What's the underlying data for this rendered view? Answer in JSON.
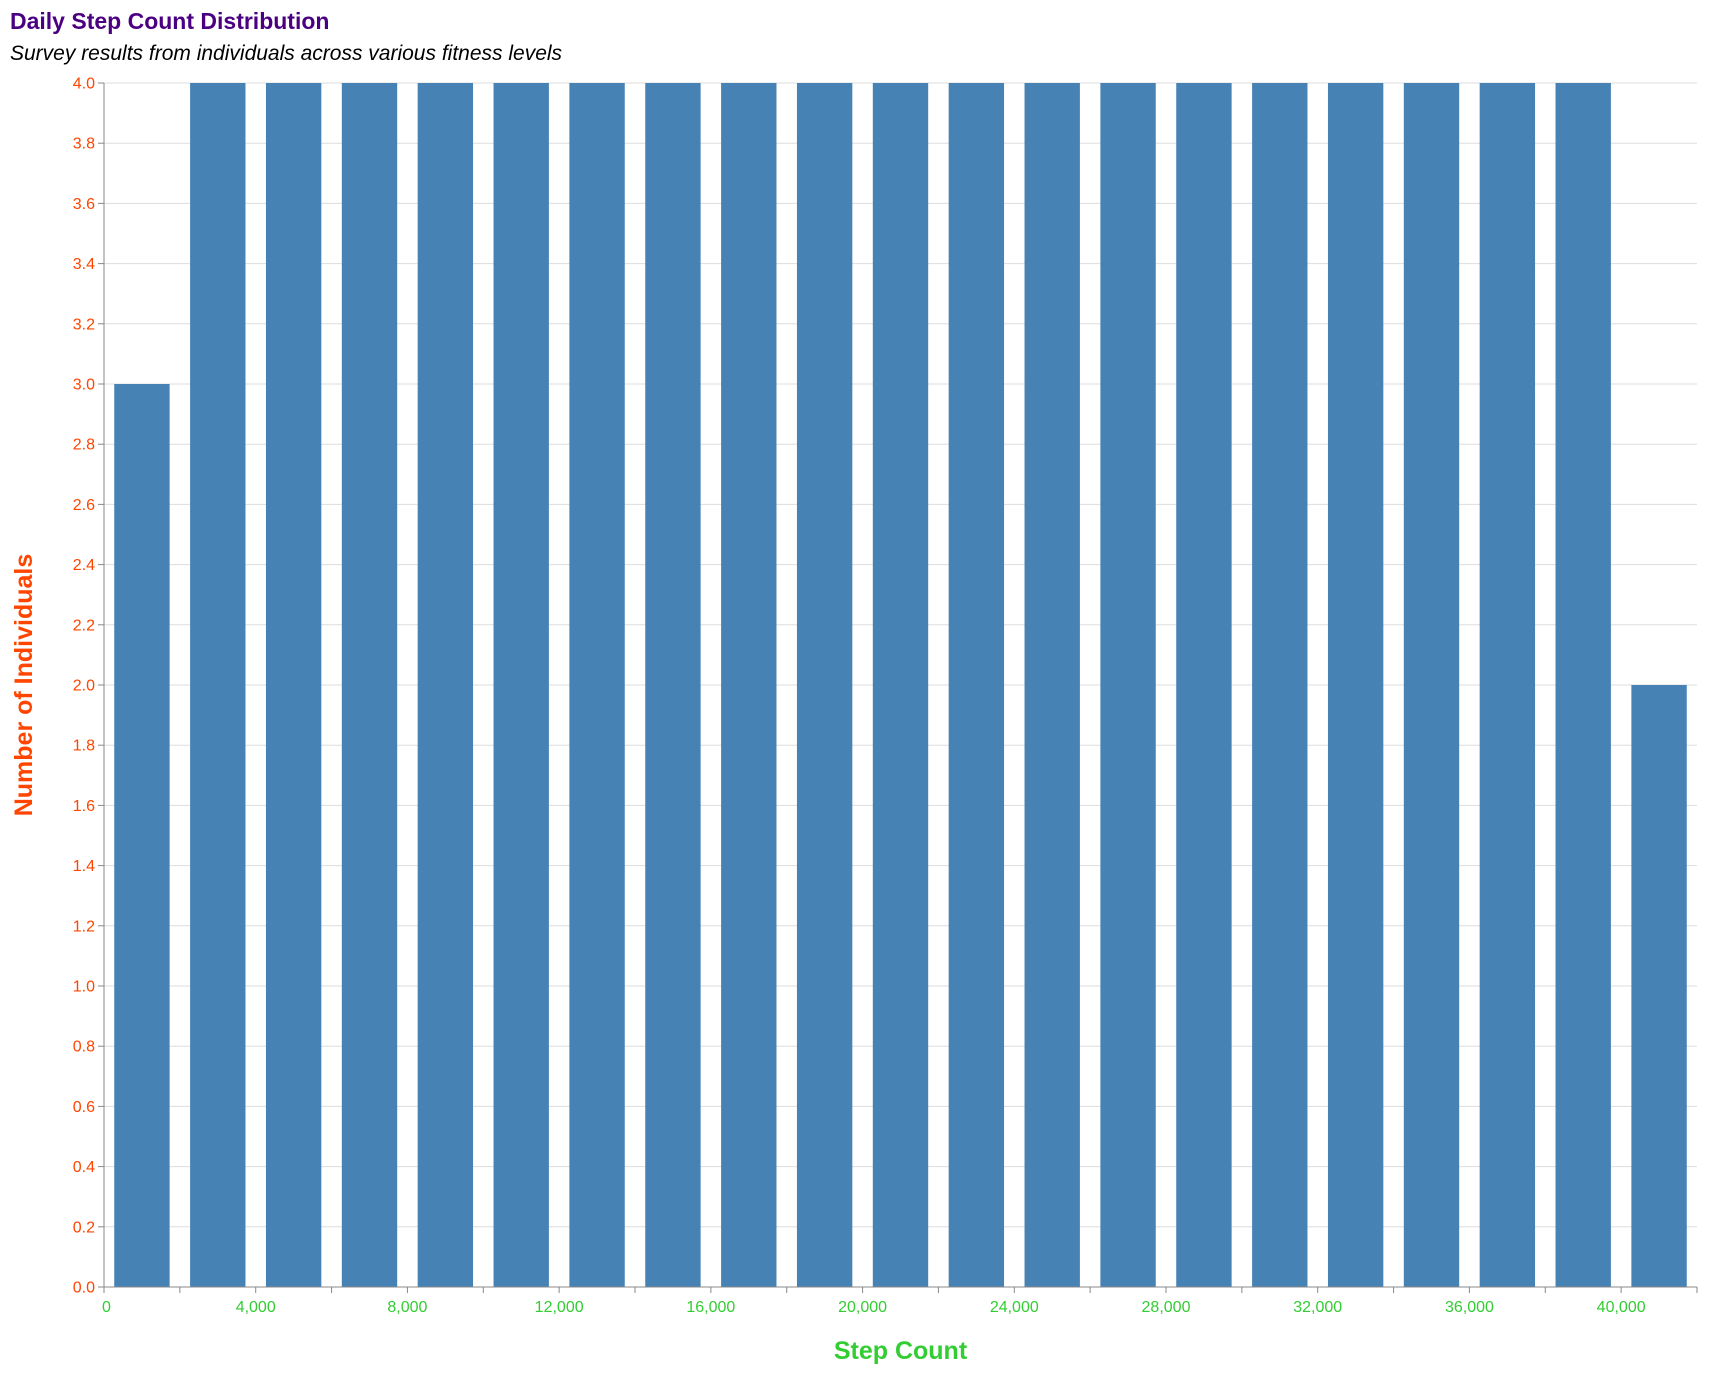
{
  "colors": {
    "title": "#4B0082",
    "subtitle": "#000000",
    "y_axis": "#FF4500",
    "x_axis": "#32CD32",
    "bar": "#4682B4",
    "grid": "#DDDDDD",
    "domain": "#888888"
  },
  "chart_data": {
    "type": "bar",
    "title": "Daily Step Count Distribution",
    "subtitle": "Survey results from individuals across various fitness levels",
    "xlabel": "Step Count",
    "ylabel": "Number of Individuals",
    "xlim": [
      0,
      42000
    ],
    "ylim": [
      0,
      4.0
    ],
    "grid": true,
    "bin_width": 2000,
    "x_ticks": [
      0,
      4000,
      8000,
      12000,
      16000,
      20000,
      24000,
      28000,
      32000,
      36000,
      40000
    ],
    "x_tick_labels": [
      "0",
      "4,000",
      "8,000",
      "12,000",
      "16,000",
      "20,000",
      "24,000",
      "28,000",
      "32,000",
      "36,000",
      "40,000"
    ],
    "y_ticks": [
      0,
      0.2,
      0.4,
      0.6,
      0.8,
      1.0,
      1.2,
      1.4,
      1.6,
      1.8,
      2.0,
      2.2,
      2.4,
      2.6,
      2.8,
      3.0,
      3.2,
      3.4,
      3.6,
      3.8,
      4.0
    ],
    "y_tick_labels": [
      "0.0",
      "0.2",
      "0.4",
      "0.6",
      "0.8",
      "1.0",
      "1.2",
      "1.4",
      "1.6",
      "1.8",
      "2.0",
      "2.2",
      "2.4",
      "2.6",
      "2.8",
      "3.0",
      "3.2",
      "3.4",
      "3.6",
      "3.8",
      "4.0"
    ],
    "bins": [
      {
        "x0": 0,
        "x1": 2000,
        "count": 3
      },
      {
        "x0": 2000,
        "x1": 4000,
        "count": 4
      },
      {
        "x0": 4000,
        "x1": 6000,
        "count": 4
      },
      {
        "x0": 6000,
        "x1": 8000,
        "count": 4
      },
      {
        "x0": 8000,
        "x1": 10000,
        "count": 4
      },
      {
        "x0": 10000,
        "x1": 12000,
        "count": 4
      },
      {
        "x0": 12000,
        "x1": 14000,
        "count": 4
      },
      {
        "x0": 14000,
        "x1": 16000,
        "count": 4
      },
      {
        "x0": 16000,
        "x1": 18000,
        "count": 4
      },
      {
        "x0": 18000,
        "x1": 20000,
        "count": 4
      },
      {
        "x0": 20000,
        "x1": 22000,
        "count": 4
      },
      {
        "x0": 22000,
        "x1": 24000,
        "count": 4
      },
      {
        "x0": 24000,
        "x1": 26000,
        "count": 4
      },
      {
        "x0": 26000,
        "x1": 28000,
        "count": 4
      },
      {
        "x0": 28000,
        "x1": 30000,
        "count": 4
      },
      {
        "x0": 30000,
        "x1": 32000,
        "count": 4
      },
      {
        "x0": 32000,
        "x1": 34000,
        "count": 4
      },
      {
        "x0": 34000,
        "x1": 36000,
        "count": 4
      },
      {
        "x0": 36000,
        "x1": 38000,
        "count": 4
      },
      {
        "x0": 38000,
        "x1": 40000,
        "count": 4
      },
      {
        "x0": 40000,
        "x1": 42000,
        "count": 2
      }
    ]
  }
}
